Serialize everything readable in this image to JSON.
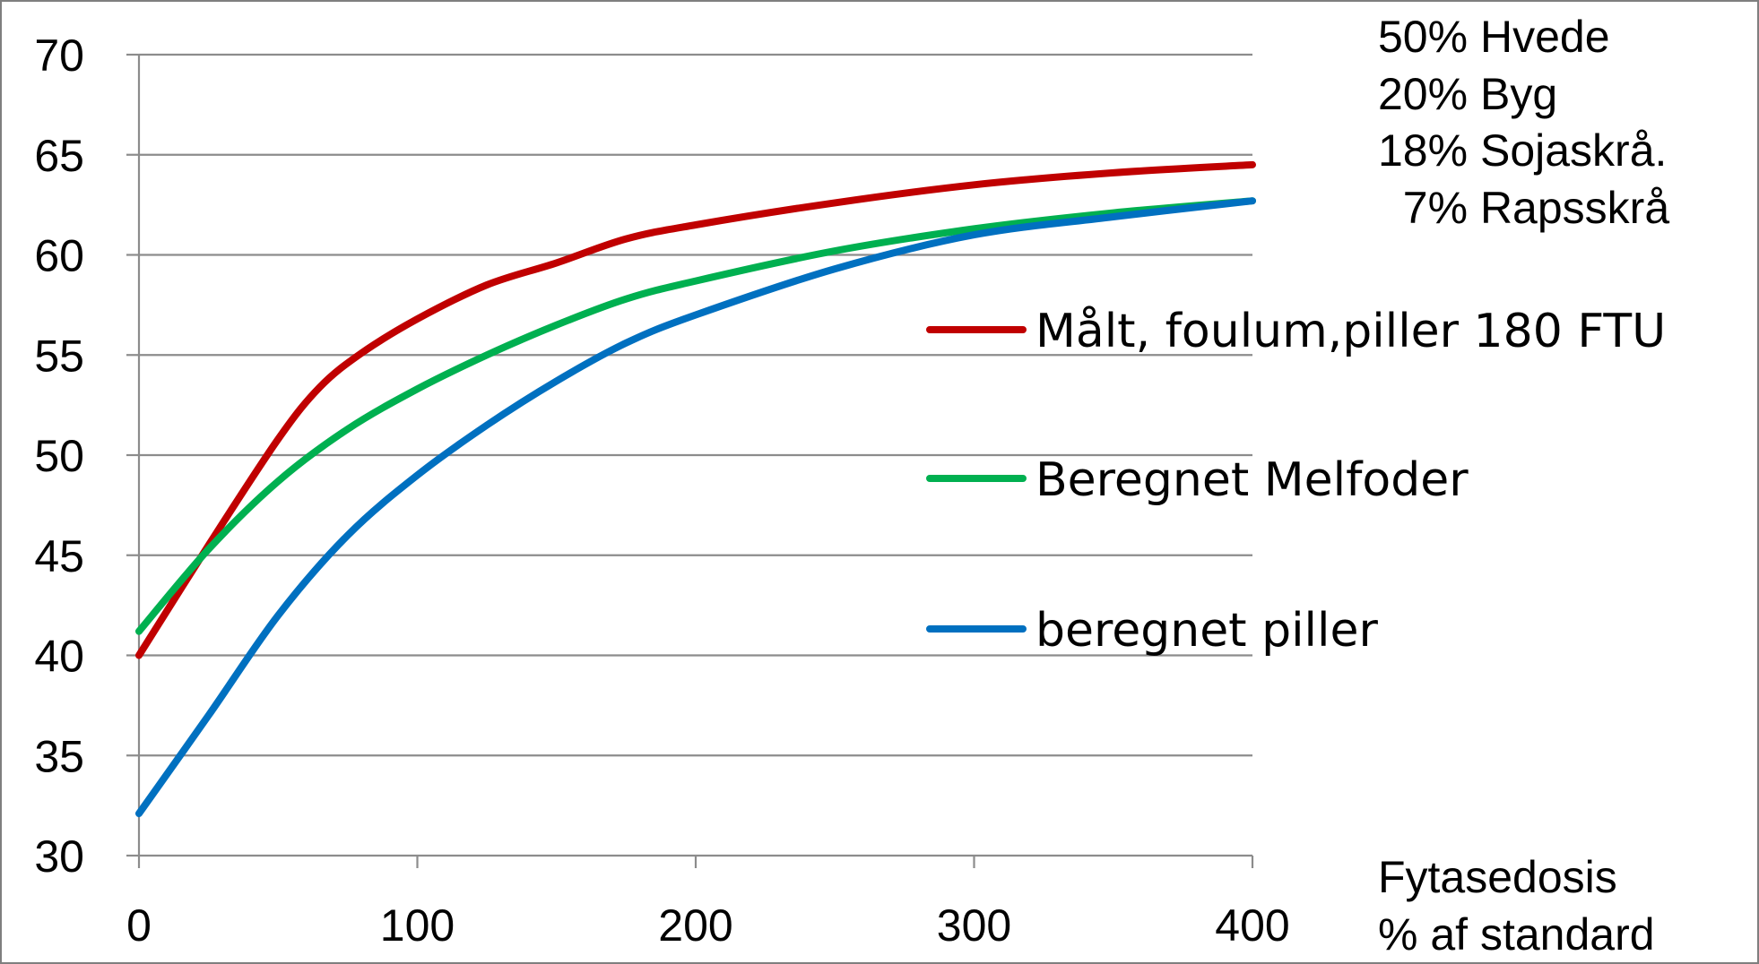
{
  "chart_data": {
    "type": "line",
    "title": "",
    "xlabel": "",
    "ylabel": "",
    "xlim": [
      0,
      400
    ],
    "ylim": [
      30,
      70
    ],
    "x_ticks": [
      0,
      100,
      200,
      300,
      400
    ],
    "y_ticks": [
      30,
      35,
      40,
      45,
      50,
      55,
      60,
      65,
      70
    ],
    "grid": "horizontal",
    "x_axis_note": [
      "Fytasedosis",
      "% af standard"
    ],
    "composition_note": [
      "50% Hvede",
      "20% Byg",
      "18% Sojaskrå.",
      "  7% Rapsskrå"
    ],
    "legend_position": "right",
    "series": [
      {
        "name": "Målt, foulum,piller 180 FTU",
        "color": "#C00000",
        "x": [
          0,
          25,
          50,
          65,
          80,
          100,
          125,
          150,
          175,
          200,
          250,
          300,
          350,
          400
        ],
        "y": [
          40,
          45.5,
          50.8,
          53.4,
          55.1,
          56.8,
          58.5,
          59.6,
          60.8,
          61.5,
          62.6,
          63.5,
          64.1,
          64.5
        ]
      },
      {
        "name": "Beregnet Melfoder",
        "color": "#00B050",
        "x": [
          0,
          25,
          50,
          75,
          100,
          125,
          150,
          175,
          200,
          250,
          300,
          350,
          400
        ],
        "y": [
          41.2,
          45.3,
          48.7,
          51.3,
          53.3,
          55.0,
          56.5,
          57.8,
          58.7,
          60.2,
          61.3,
          62.1,
          62.7
        ]
      },
      {
        "name": "beregnet piller",
        "color": "#0070C0",
        "x": [
          0,
          25,
          50,
          75,
          100,
          125,
          150,
          175,
          200,
          250,
          300,
          350,
          400
        ],
        "y": [
          32.1,
          37.0,
          42.0,
          46.0,
          49.0,
          51.5,
          53.7,
          55.6,
          57.0,
          59.3,
          61.0,
          61.9,
          62.7
        ]
      }
    ]
  }
}
